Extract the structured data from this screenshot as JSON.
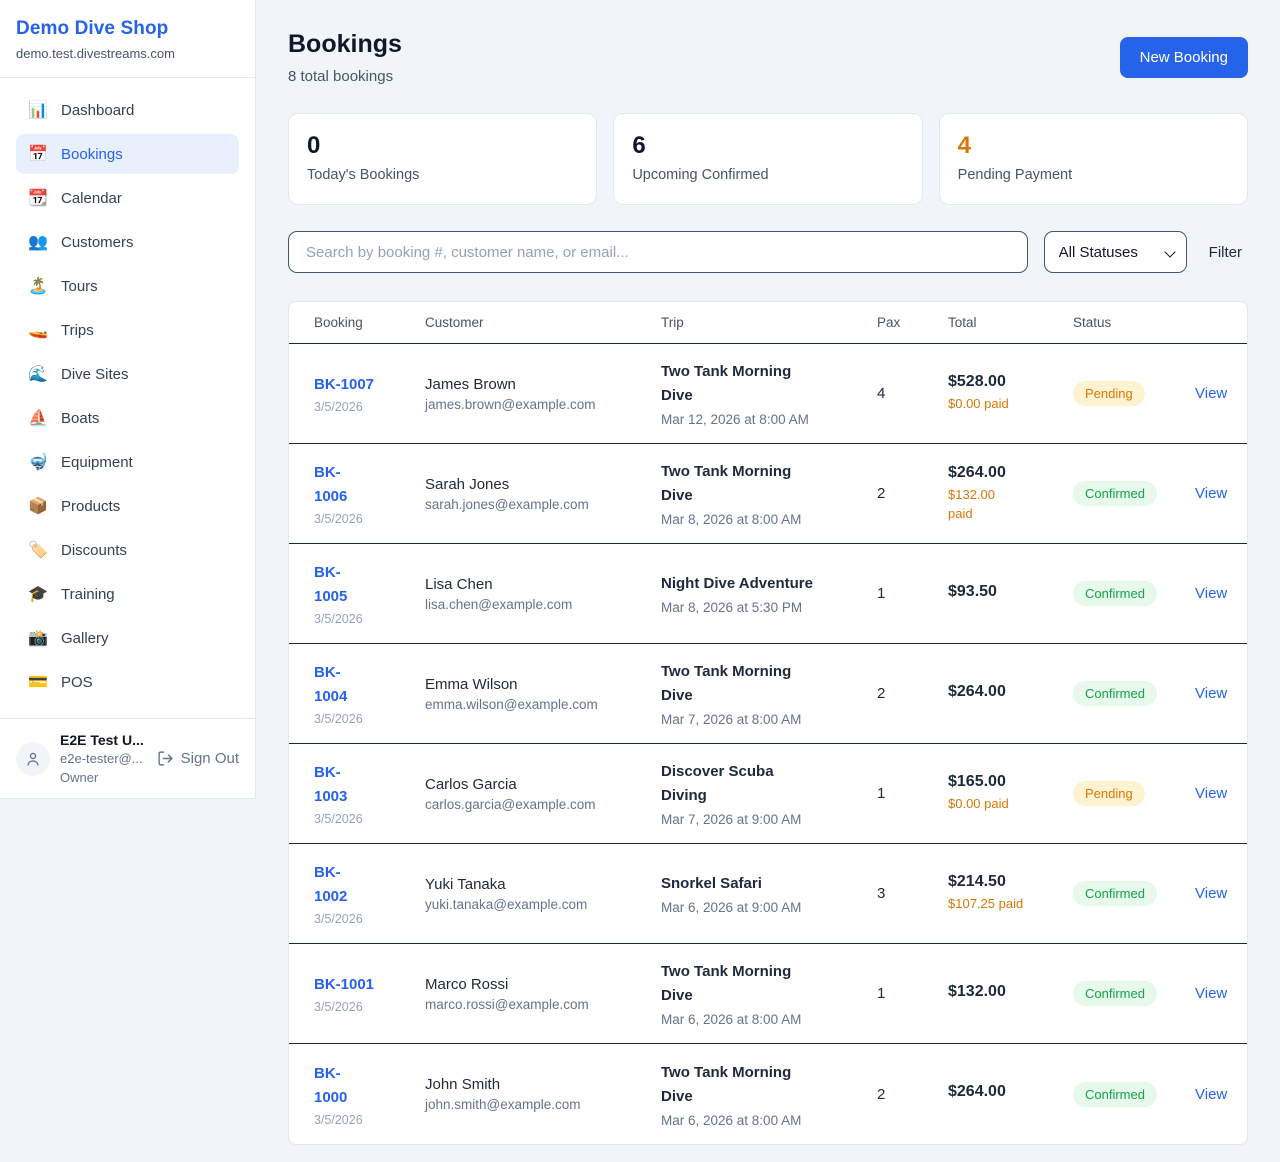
{
  "sidebar": {
    "brand": "Demo Dive Shop",
    "domain": "demo.test.divestreams.com",
    "items": [
      {
        "label": "Dashboard",
        "icon": "bar-chart-icon",
        "glyph": "📊",
        "active": false
      },
      {
        "label": "Bookings",
        "icon": "calendar-date-icon",
        "glyph": "📅",
        "active": true
      },
      {
        "label": "Calendar",
        "icon": "tear-calendar-icon",
        "glyph": "📆",
        "active": false
      },
      {
        "label": "Customers",
        "icon": "people-icon",
        "glyph": "👥",
        "active": false
      },
      {
        "label": "Tours",
        "icon": "island-icon",
        "glyph": "🏝️",
        "active": false
      },
      {
        "label": "Trips",
        "icon": "speedboat-icon",
        "glyph": "🚤",
        "active": false
      },
      {
        "label": "Dive Sites",
        "icon": "wave-icon",
        "glyph": "🌊",
        "active": false
      },
      {
        "label": "Boats",
        "icon": "sailboat-icon",
        "glyph": "⛵",
        "active": false
      },
      {
        "label": "Equipment",
        "icon": "diving-mask-icon",
        "glyph": "🤿",
        "active": false
      },
      {
        "label": "Products",
        "icon": "package-icon",
        "glyph": "📦",
        "active": false
      },
      {
        "label": "Discounts",
        "icon": "label-tag-icon",
        "glyph": "🏷️",
        "active": false
      },
      {
        "label": "Training",
        "icon": "graduation-cap-icon",
        "glyph": "🎓",
        "active": false
      },
      {
        "label": "Gallery",
        "icon": "camera-flash-icon",
        "glyph": "📸",
        "active": false
      },
      {
        "label": "POS",
        "icon": "credit-card-icon",
        "glyph": "💳",
        "active": false
      }
    ],
    "user": {
      "name": "E2E Test U...",
      "email": "e2e-tester@...",
      "role": "Owner",
      "signout_label": "Sign Out"
    }
  },
  "header": {
    "title": "Bookings",
    "subtitle": "8 total bookings",
    "new_booking_label": "New Booking"
  },
  "stats": [
    {
      "value": "0",
      "label": "Today's Bookings",
      "color": "#0f172a"
    },
    {
      "value": "6",
      "label": "Upcoming Confirmed",
      "color": "#0f172a"
    },
    {
      "value": "4",
      "label": "Pending Payment",
      "color": "#d97706"
    }
  ],
  "toolbar": {
    "search_placeholder": "Search by booking #, customer name, or email...",
    "status_filter_value": "All Statuses",
    "filter_label": "Filter"
  },
  "table": {
    "headers": [
      "Booking",
      "Customer",
      "Trip",
      "Pax",
      "Total",
      "Status"
    ],
    "rows": [
      {
        "id": "BK-1007",
        "date": "3/5/2026",
        "name": "James Brown",
        "email": "james.brown@example.com",
        "trip": "Two Tank Morning\nDive",
        "when": "Mar 12, 2026 at 8:00 AM",
        "pax": "4",
        "total": "$528.00",
        "paid": "$0.00 paid",
        "status": "Pending",
        "status_type": "pending",
        "action": "View"
      },
      {
        "id": "BK-\n1006",
        "date": "3/5/2026",
        "name": "Sarah Jones",
        "email": "sarah.jones@example.com",
        "trip": "Two Tank Morning\nDive",
        "when": "Mar 8, 2026 at 8:00 AM",
        "pax": "2",
        "total": "$264.00",
        "paid": "$132.00\npaid",
        "status": "Confirmed",
        "status_type": "confirmed",
        "action": "View"
      },
      {
        "id": "BK-\n1005",
        "date": "3/5/2026",
        "name": "Lisa Chen",
        "email": "lisa.chen@example.com",
        "trip": "Night Dive Adventure",
        "when": "Mar 8, 2026 at 5:30 PM",
        "pax": "1",
        "total": "$93.50",
        "paid": "",
        "status": "Confirmed",
        "status_type": "confirmed",
        "action": "View"
      },
      {
        "id": "BK-\n1004",
        "date": "3/5/2026",
        "name": "Emma Wilson",
        "email": "emma.wilson@example.com",
        "trip": "Two Tank Morning\nDive",
        "when": "Mar 7, 2026 at 8:00 AM",
        "pax": "2",
        "total": "$264.00",
        "paid": "",
        "status": "Confirmed",
        "status_type": "confirmed",
        "action": "View"
      },
      {
        "id": "BK-\n1003",
        "date": "3/5/2026",
        "name": "Carlos Garcia",
        "email": "carlos.garcia@example.com",
        "trip": "Discover Scuba\nDiving",
        "when": "Mar 7, 2026 at 9:00 AM",
        "pax": "1",
        "total": "$165.00",
        "paid": "$0.00 paid",
        "status": "Pending",
        "status_type": "pending",
        "action": "View"
      },
      {
        "id": "BK-\n1002",
        "date": "3/5/2026",
        "name": "Yuki Tanaka",
        "email": "yuki.tanaka@example.com",
        "trip": "Snorkel Safari",
        "when": "Mar 6, 2026 at 9:00 AM",
        "pax": "3",
        "total": "$214.50",
        "paid": "$107.25 paid",
        "status": "Confirmed",
        "status_type": "confirmed",
        "action": "View"
      },
      {
        "id": "BK-1001",
        "date": "3/5/2026",
        "name": "Marco Rossi",
        "email": "marco.rossi@example.com",
        "trip": "Two Tank Morning\nDive",
        "when": "Mar 6, 2026 at 8:00 AM",
        "pax": "1",
        "total": "$132.00",
        "paid": "",
        "status": "Confirmed",
        "status_type": "confirmed",
        "action": "View"
      },
      {
        "id": "BK-\n1000",
        "date": "3/5/2026",
        "name": "John Smith",
        "email": "john.smith@example.com",
        "trip": "Two Tank Morning\nDive",
        "when": "Mar 6, 2026 at 8:00 AM",
        "pax": "2",
        "total": "$264.00",
        "paid": "",
        "status": "Confirmed",
        "status_type": "confirmed",
        "action": "View"
      }
    ]
  },
  "colors": {
    "accent_blue": "#2563eb",
    "pending_text": "#d97706",
    "pending_bg": "#fdf3d0",
    "confirmed_text": "#16a34a",
    "confirmed_bg": "#e7f8ed",
    "row_divider": "#1e293b"
  }
}
